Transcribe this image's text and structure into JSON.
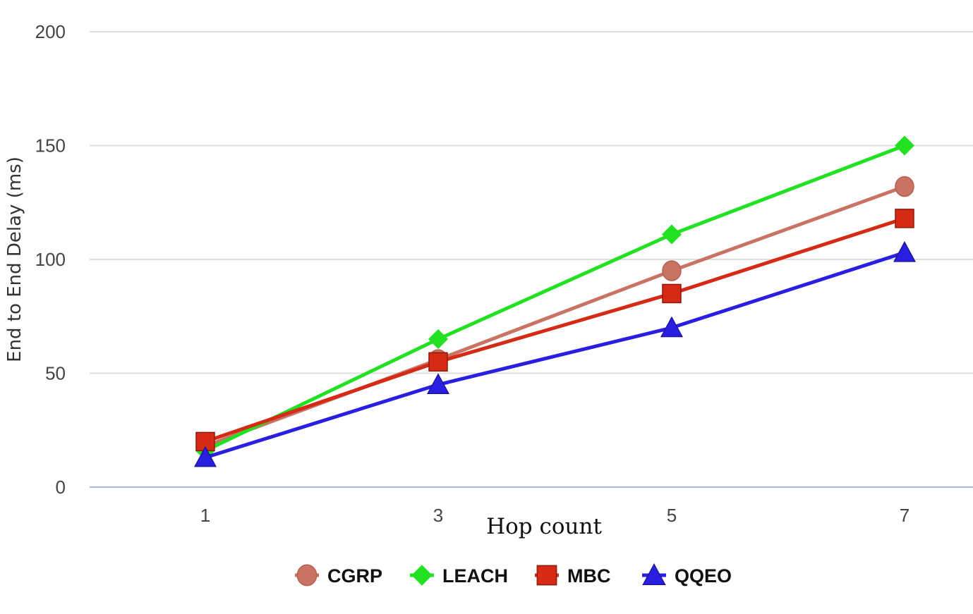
{
  "chart_data": {
    "type": "line",
    "xlabel": "Hop count",
    "ylabel": "End to End Delay (ms)",
    "categories": [
      "1",
      "3",
      "5",
      "7"
    ],
    "x": [
      1,
      3,
      5,
      7
    ],
    "ylim": [
      0,
      200
    ],
    "yticks": [
      "0",
      "50",
      "100",
      "150",
      "200"
    ],
    "grid": true,
    "legend": "bottom",
    "series": [
      {
        "name": "CGRP",
        "values": [
          18,
          56,
          95,
          132
        ],
        "color": "#c87363",
        "marker": "circle"
      },
      {
        "name": "LEACH",
        "values": [
          16,
          65,
          111,
          150
        ],
        "color": "#22e022",
        "marker": "diamond"
      },
      {
        "name": "MBC",
        "values": [
          20,
          55,
          85,
          118
        ],
        "color": "#d42a16",
        "marker": "square"
      },
      {
        "name": "QQEO",
        "values": [
          13,
          45,
          70,
          103
        ],
        "color": "#2a1ee0",
        "marker": "triangle"
      }
    ]
  }
}
